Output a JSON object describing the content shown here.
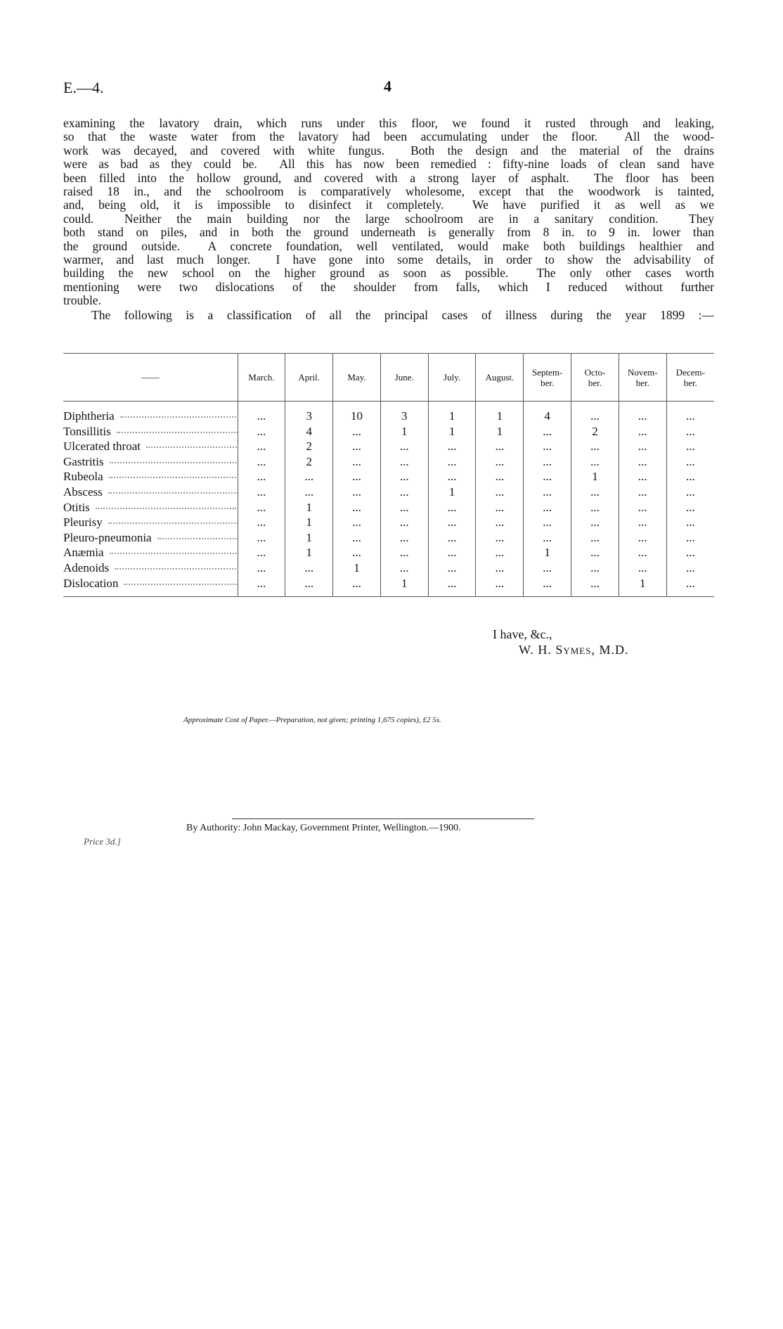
{
  "header": {
    "ref": "E.—4.",
    "page": "4"
  },
  "body": {
    "lines": [
      "examining the lavatory drain, which runs under this floor, we found it rusted through and leaking,",
      "so that the waste water from the lavatory had been accumulating under the floor.  All the wood-",
      "work was decayed, and covered with white fungus.  Both the design and the material of the drains",
      "were as bad as they could be.  All this has now been remedied : fifty-nine loads of clean sand have",
      "been filled into the hollow ground, and covered with a strong layer of asphalt.  The floor has been",
      "raised 18 in., and the schoolroom is comparatively wholesome, except that the woodwork is tainted,",
      "and, being old, it is impossible to disinfect it completely.  We have purified it as well as we",
      "could.  Neither the main building nor the large schoolroom are in a sanitary condition.  They",
      "both stand on piles, and in both the ground underneath is generally from 8 in. to 9 in. lower than",
      "the ground outside.  A concrete foundation, well ventilated, would make both buildings healthier and",
      "warmer, and last much longer.  I have gone into some details, in order to show the advisability of",
      "building the new school on the higher ground as soon as possible.  The only other cases worth",
      "mentioning were two dislocations of the shoulder from falls, which I reduced without further",
      "trouble."
    ],
    "intro": "The following is a classification of all the principal cases of illness during the year 1899 :—"
  },
  "table": {
    "corner": "——",
    "columns": [
      "March.",
      "April.",
      "May.",
      "June.",
      "July.",
      "August.",
      "Septem-\nber.",
      "Octo-\nber.",
      "Novem-\nber.",
      "Decem-\nber."
    ],
    "rows": [
      {
        "name": "Diphtheria",
        "cells": [
          "...",
          3,
          10,
          3,
          1,
          1,
          4,
          "...",
          "...",
          "..."
        ]
      },
      {
        "name": "Tonsillitis",
        "cells": [
          "...",
          4,
          "...",
          1,
          1,
          1,
          "...",
          2,
          "...",
          "..."
        ]
      },
      {
        "name": "Ulcerated throat",
        "cells": [
          "...",
          2,
          "...",
          "...",
          "...",
          "...",
          "...",
          "...",
          "...",
          "..."
        ]
      },
      {
        "name": "Gastritis",
        "cells": [
          "...",
          2,
          "...",
          "...",
          "...",
          "...",
          "...",
          "...",
          "...",
          "..."
        ]
      },
      {
        "name": "Rubeola",
        "cells": [
          "...",
          "...",
          "...",
          "...",
          "...",
          "...",
          "...",
          1,
          "...",
          "..."
        ]
      },
      {
        "name": "Abscess",
        "cells": [
          "...",
          "...",
          "...",
          "...",
          1,
          "...",
          "...",
          "...",
          "...",
          "..."
        ]
      },
      {
        "name": "Otitis",
        "cells": [
          "...",
          1,
          "...",
          "...",
          "...",
          "...",
          "...",
          "...",
          "...",
          "..."
        ]
      },
      {
        "name": "Pleurisy",
        "cells": [
          "...",
          1,
          "...",
          "...",
          "...",
          "...",
          "...",
          "...",
          "...",
          "..."
        ]
      },
      {
        "name": "Pleuro-pneumonia",
        "cells": [
          "...",
          1,
          "...",
          "...",
          "...",
          "...",
          "...",
          "...",
          "...",
          "..."
        ]
      },
      {
        "name": "Anæmia",
        "cells": [
          "...",
          1,
          "...",
          "...",
          "...",
          "...",
          1,
          "...",
          "...",
          "..."
        ]
      },
      {
        "name": "Adenoids",
        "cells": [
          "...",
          "...",
          1,
          "...",
          "...",
          "...",
          "...",
          "...",
          "...",
          "..."
        ]
      },
      {
        "name": "Dislocation",
        "cells": [
          "...",
          "...",
          "...",
          1,
          "...",
          "...",
          "...",
          "...",
          1,
          "..."
        ]
      }
    ]
  },
  "signature": {
    "closing": "I have, &c.,",
    "name": "W. H. Symes, M.D."
  },
  "cost_note": "Approximate Cost of Paper.—Preparation, not given; printing 1,675 copies), £2 5s.",
  "authority": "By Authority: John Mackay, Government Printer, Wellington.—1900.",
  "price": "Price 3d.]"
}
